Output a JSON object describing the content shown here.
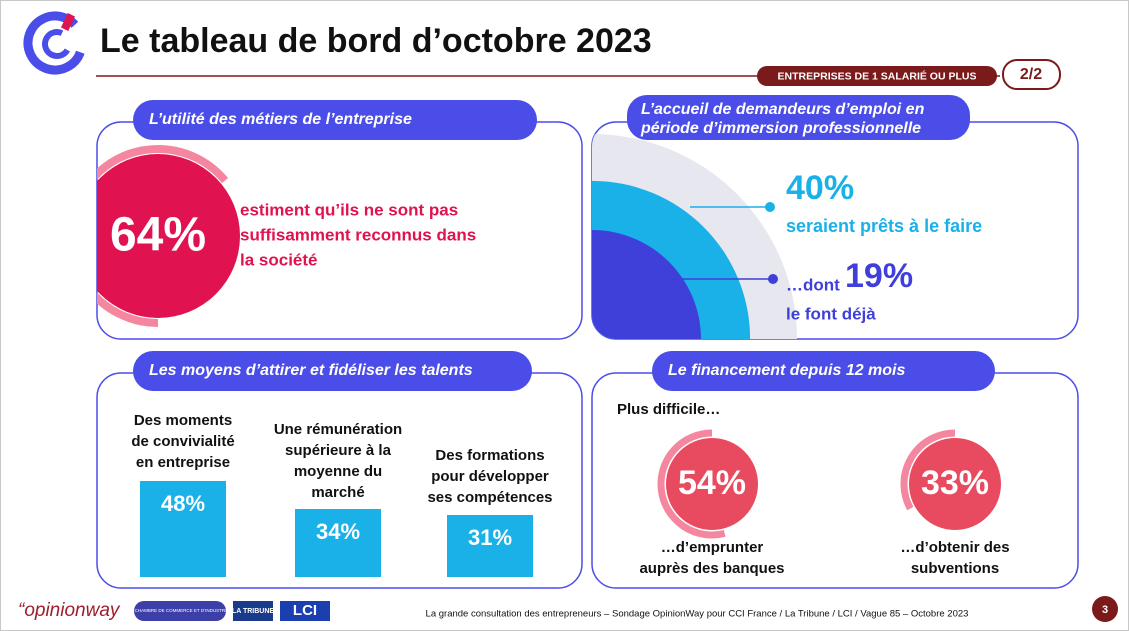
{
  "header": {
    "title": "Le tableau de bord d’octobre 2023",
    "badge": "ENTREPRISES DE 1 SALARIÉ OU PLUS",
    "page": "2/2"
  },
  "panels": {
    "utilite": {
      "title": "L’utilité des métiers de l’entreprise",
      "stat": {
        "value": 64,
        "label": "64%"
      },
      "text": [
        "estiment qu’ils ne sont pas",
        "suffisamment reconnus dans",
        "la société"
      ]
    },
    "accueil": {
      "title": [
        "L’accueil de demandeurs d’emploi en",
        "période d’immersion professionnelle"
      ],
      "stats": [
        {
          "value": 40,
          "label": "40%",
          "caption": "seraient prêts à le faire"
        },
        {
          "prefix": "…dont",
          "value": 19,
          "label": "19%",
          "caption": "le font déjà"
        }
      ]
    },
    "moyens": {
      "title": "Les moyens d’attirer et fidéliser les talents",
      "items": [
        {
          "text": [
            "Des moments",
            "de convivialité",
            "en entreprise"
          ],
          "value": 48,
          "label": "48%"
        },
        {
          "text": [
            "Une rémunération",
            "supérieure à la",
            "moyenne du",
            "marché"
          ],
          "value": 34,
          "label": "34%"
        },
        {
          "text": [
            "Des formations",
            "pour développer",
            "ses compétences"
          ],
          "value": 31,
          "label": "31%"
        }
      ]
    },
    "financement": {
      "title": "Le financement depuis 12 mois",
      "intro": "Plus difficile…",
      "items": [
        {
          "value": 54,
          "label": "54%",
          "caption": [
            "…d’emprunter",
            "auprès des banques"
          ]
        },
        {
          "value": 33,
          "label": "33%",
          "caption": [
            "…d’obtenir des",
            "subventions"
          ]
        }
      ]
    }
  },
  "footer": {
    "brand": "“opinionway",
    "logos": [
      "CHAMBRE DE COMMERCE ET D’INDUSTRIE",
      "LA TRIBUNE",
      "LCI"
    ],
    "source": "La grande consultation des entrepreneurs – Sondage OpinionWay pour CCI France / La Tribune / LCI / Vague 85 – Octobre 2023",
    "page": "3"
  }
}
